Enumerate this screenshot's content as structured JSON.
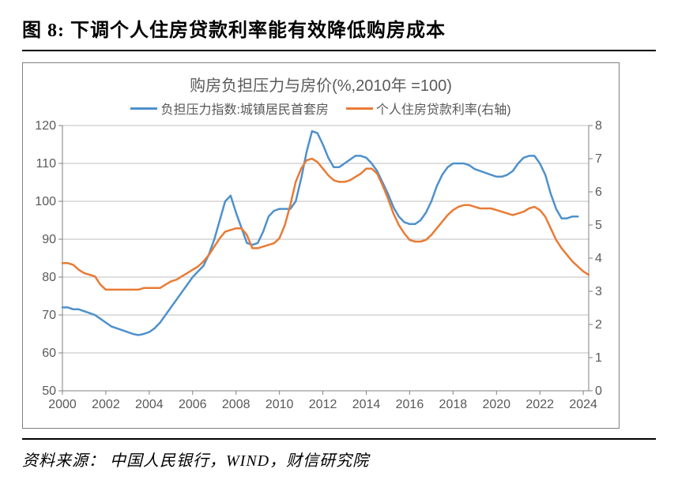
{
  "figure": {
    "label": "图 8:",
    "title": "下调个人住房贷款利率能有效降低购房成本"
  },
  "chart": {
    "type": "line",
    "title": "购房负担压力与房价(%,2010年 =100)",
    "title_fontsize": 20,
    "title_color": "#595959",
    "background_color": "#ffffff",
    "border_color": "#808080",
    "grid_color": "#bfbfbf",
    "axis_line_color": "#808080",
    "tick_color": "#808080",
    "axis_label_color": "#595959",
    "axis_label_fontsize": 16,
    "legend": {
      "position": "top",
      "items": [
        {
          "label": "负担压力指数:城镇居民首套房",
          "color": "#4e91cc"
        },
        {
          "label": "个人住房贷款利率(右轴)",
          "color": "#e87b35"
        }
      ]
    },
    "left_axis": {
      "min": 50,
      "max": 120,
      "tick_step": 10,
      "ticks": [
        50,
        60,
        70,
        80,
        90,
        100,
        110,
        120
      ]
    },
    "right_axis": {
      "min": 0,
      "max": 8,
      "tick_step": 1,
      "ticks": [
        0,
        1,
        2,
        3,
        4,
        5,
        6,
        7,
        8
      ]
    },
    "x_axis": {
      "min": 2000.0,
      "max": 2024.25,
      "tick_step": 2,
      "ticks": [
        2000,
        2002,
        2004,
        2006,
        2008,
        2010,
        2012,
        2014,
        2016,
        2018,
        2020,
        2022,
        2024
      ]
    },
    "series": [
      {
        "name": "pressure_index",
        "axis": "left",
        "color": "#4e91cc",
        "line_width": 2.5,
        "points": [
          [
            2000.0,
            72
          ],
          [
            2000.25,
            72
          ],
          [
            2000.5,
            71.5
          ],
          [
            2000.75,
            71.5
          ],
          [
            2001.0,
            71
          ],
          [
            2001.25,
            70.5
          ],
          [
            2001.5,
            70
          ],
          [
            2001.75,
            69
          ],
          [
            2002.0,
            68
          ],
          [
            2002.25,
            67
          ],
          [
            2002.5,
            66.5
          ],
          [
            2002.75,
            66
          ],
          [
            2003.0,
            65.5
          ],
          [
            2003.25,
            65
          ],
          [
            2003.5,
            64.7
          ],
          [
            2003.75,
            65
          ],
          [
            2004.0,
            65.5
          ],
          [
            2004.25,
            66.5
          ],
          [
            2004.5,
            68
          ],
          [
            2004.75,
            70
          ],
          [
            2005.0,
            72
          ],
          [
            2005.25,
            74
          ],
          [
            2005.5,
            76
          ],
          [
            2005.75,
            78
          ],
          [
            2006.0,
            80
          ],
          [
            2006.25,
            81.5
          ],
          [
            2006.5,
            83
          ],
          [
            2006.75,
            86
          ],
          [
            2007.0,
            90
          ],
          [
            2007.25,
            95
          ],
          [
            2007.5,
            100
          ],
          [
            2007.75,
            101.5
          ],
          [
            2008.0,
            97
          ],
          [
            2008.25,
            93
          ],
          [
            2008.5,
            89
          ],
          [
            2008.75,
            88.5
          ],
          [
            2009.0,
            89
          ],
          [
            2009.25,
            92
          ],
          [
            2009.5,
            96
          ],
          [
            2009.75,
            97.5
          ],
          [
            2010.0,
            98
          ],
          [
            2010.25,
            98
          ],
          [
            2010.5,
            98
          ],
          [
            2010.75,
            100
          ],
          [
            2011.0,
            106
          ],
          [
            2011.25,
            113
          ],
          [
            2011.5,
            118.5
          ],
          [
            2011.75,
            118
          ],
          [
            2012.0,
            115
          ],
          [
            2012.25,
            111.5
          ],
          [
            2012.5,
            109
          ],
          [
            2012.75,
            109
          ],
          [
            2013.0,
            110
          ],
          [
            2013.25,
            111
          ],
          [
            2013.5,
            112
          ],
          [
            2013.75,
            112
          ],
          [
            2014.0,
            111.5
          ],
          [
            2014.25,
            110
          ],
          [
            2014.5,
            108
          ],
          [
            2014.75,
            105
          ],
          [
            2015.0,
            102
          ],
          [
            2015.25,
            98.5
          ],
          [
            2015.5,
            96
          ],
          [
            2015.75,
            94.5
          ],
          [
            2016.0,
            94
          ],
          [
            2016.25,
            94
          ],
          [
            2016.5,
            95
          ],
          [
            2016.75,
            97
          ],
          [
            2017.0,
            100
          ],
          [
            2017.25,
            104
          ],
          [
            2017.5,
            107
          ],
          [
            2017.75,
            109
          ],
          [
            2018.0,
            110
          ],
          [
            2018.25,
            110
          ],
          [
            2018.5,
            110
          ],
          [
            2018.75,
            109.5
          ],
          [
            2019.0,
            108.5
          ],
          [
            2019.25,
            108
          ],
          [
            2019.5,
            107.5
          ],
          [
            2019.75,
            107
          ],
          [
            2020.0,
            106.5
          ],
          [
            2020.25,
            106.5
          ],
          [
            2020.5,
            107
          ],
          [
            2020.75,
            108
          ],
          [
            2021.0,
            110
          ],
          [
            2021.25,
            111.5
          ],
          [
            2021.5,
            112
          ],
          [
            2021.75,
            112
          ],
          [
            2022.0,
            110
          ],
          [
            2022.25,
            107
          ],
          [
            2022.5,
            102
          ],
          [
            2022.75,
            98
          ],
          [
            2023.0,
            95.5
          ],
          [
            2023.25,
            95.5
          ],
          [
            2023.5,
            96
          ],
          [
            2023.75,
            96
          ]
        ]
      },
      {
        "name": "mortgage_rate",
        "axis": "right",
        "color": "#e87b35",
        "line_width": 2.5,
        "points": [
          [
            2000.0,
            3.85
          ],
          [
            2000.25,
            3.85
          ],
          [
            2000.5,
            3.8
          ],
          [
            2000.75,
            3.65
          ],
          [
            2001.0,
            3.55
          ],
          [
            2001.25,
            3.5
          ],
          [
            2001.5,
            3.45
          ],
          [
            2001.75,
            3.2
          ],
          [
            2002.0,
            3.05
          ],
          [
            2002.25,
            3.05
          ],
          [
            2002.5,
            3.05
          ],
          [
            2002.75,
            3.05
          ],
          [
            2003.0,
            3.05
          ],
          [
            2003.25,
            3.05
          ],
          [
            2003.5,
            3.05
          ],
          [
            2003.75,
            3.1
          ],
          [
            2004.0,
            3.1
          ],
          [
            2004.25,
            3.1
          ],
          [
            2004.5,
            3.1
          ],
          [
            2004.75,
            3.2
          ],
          [
            2005.0,
            3.3
          ],
          [
            2005.25,
            3.35
          ],
          [
            2005.5,
            3.45
          ],
          [
            2005.75,
            3.55
          ],
          [
            2006.0,
            3.65
          ],
          [
            2006.25,
            3.75
          ],
          [
            2006.5,
            3.9
          ],
          [
            2006.75,
            4.1
          ],
          [
            2007.0,
            4.35
          ],
          [
            2007.25,
            4.6
          ],
          [
            2007.5,
            4.8
          ],
          [
            2007.75,
            4.85
          ],
          [
            2008.0,
            4.9
          ],
          [
            2008.25,
            4.9
          ],
          [
            2008.5,
            4.7
          ],
          [
            2008.75,
            4.3
          ],
          [
            2009.0,
            4.3
          ],
          [
            2009.25,
            4.35
          ],
          [
            2009.5,
            4.4
          ],
          [
            2009.75,
            4.45
          ],
          [
            2010.0,
            4.6
          ],
          [
            2010.25,
            5.0
          ],
          [
            2010.5,
            5.6
          ],
          [
            2010.75,
            6.3
          ],
          [
            2011.0,
            6.7
          ],
          [
            2011.25,
            6.95
          ],
          [
            2011.5,
            7.0
          ],
          [
            2011.75,
            6.9
          ],
          [
            2012.0,
            6.7
          ],
          [
            2012.25,
            6.5
          ],
          [
            2012.5,
            6.35
          ],
          [
            2012.75,
            6.3
          ],
          [
            2013.0,
            6.3
          ],
          [
            2013.25,
            6.35
          ],
          [
            2013.5,
            6.45
          ],
          [
            2013.75,
            6.55
          ],
          [
            2014.0,
            6.7
          ],
          [
            2014.25,
            6.7
          ],
          [
            2014.5,
            6.55
          ],
          [
            2014.75,
            6.2
          ],
          [
            2015.0,
            5.8
          ],
          [
            2015.25,
            5.35
          ],
          [
            2015.5,
            5.0
          ],
          [
            2015.75,
            4.75
          ],
          [
            2016.0,
            4.55
          ],
          [
            2016.25,
            4.5
          ],
          [
            2016.5,
            4.5
          ],
          [
            2016.75,
            4.55
          ],
          [
            2017.0,
            4.7
          ],
          [
            2017.25,
            4.9
          ],
          [
            2017.5,
            5.1
          ],
          [
            2017.75,
            5.3
          ],
          [
            2018.0,
            5.45
          ],
          [
            2018.25,
            5.55
          ],
          [
            2018.5,
            5.6
          ],
          [
            2018.75,
            5.6
          ],
          [
            2019.0,
            5.55
          ],
          [
            2019.25,
            5.5
          ],
          [
            2019.5,
            5.5
          ],
          [
            2019.75,
            5.5
          ],
          [
            2020.0,
            5.45
          ],
          [
            2020.25,
            5.4
          ],
          [
            2020.5,
            5.35
          ],
          [
            2020.75,
            5.3
          ],
          [
            2021.0,
            5.35
          ],
          [
            2021.25,
            5.4
          ],
          [
            2021.5,
            5.5
          ],
          [
            2021.75,
            5.55
          ],
          [
            2022.0,
            5.45
          ],
          [
            2022.25,
            5.25
          ],
          [
            2022.5,
            4.9
          ],
          [
            2022.75,
            4.55
          ],
          [
            2023.0,
            4.3
          ],
          [
            2023.25,
            4.1
          ],
          [
            2023.5,
            3.9
          ],
          [
            2023.75,
            3.75
          ],
          [
            2024.0,
            3.6
          ],
          [
            2024.25,
            3.5
          ]
        ]
      }
    ]
  },
  "source": {
    "prefix": "资料来源：",
    "text": "中国人民银行，WIND，财信研究院"
  }
}
